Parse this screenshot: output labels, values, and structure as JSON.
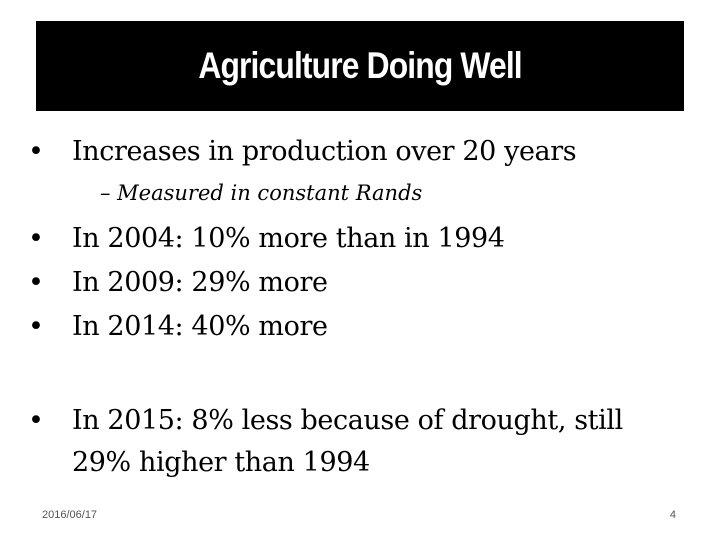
{
  "slide": {
    "title": "Agriculture Doing Well",
    "bullet_glyph": "•",
    "bullets": [
      {
        "text": "Increases in production over 20 years"
      },
      {
        "text": "In 2004: 10% more than in 1994"
      },
      {
        "text": "In 2009: 29% more"
      },
      {
        "text": "In 2014: 40% more"
      },
      {
        "text": "In 2015: 8% less because of drought, still",
        "continuation": "29% higher than 1994"
      }
    ],
    "sub_bullet": "– Measured in constant Rands"
  },
  "footer": {
    "date": "2016/06/17",
    "page_number": "4"
  }
}
